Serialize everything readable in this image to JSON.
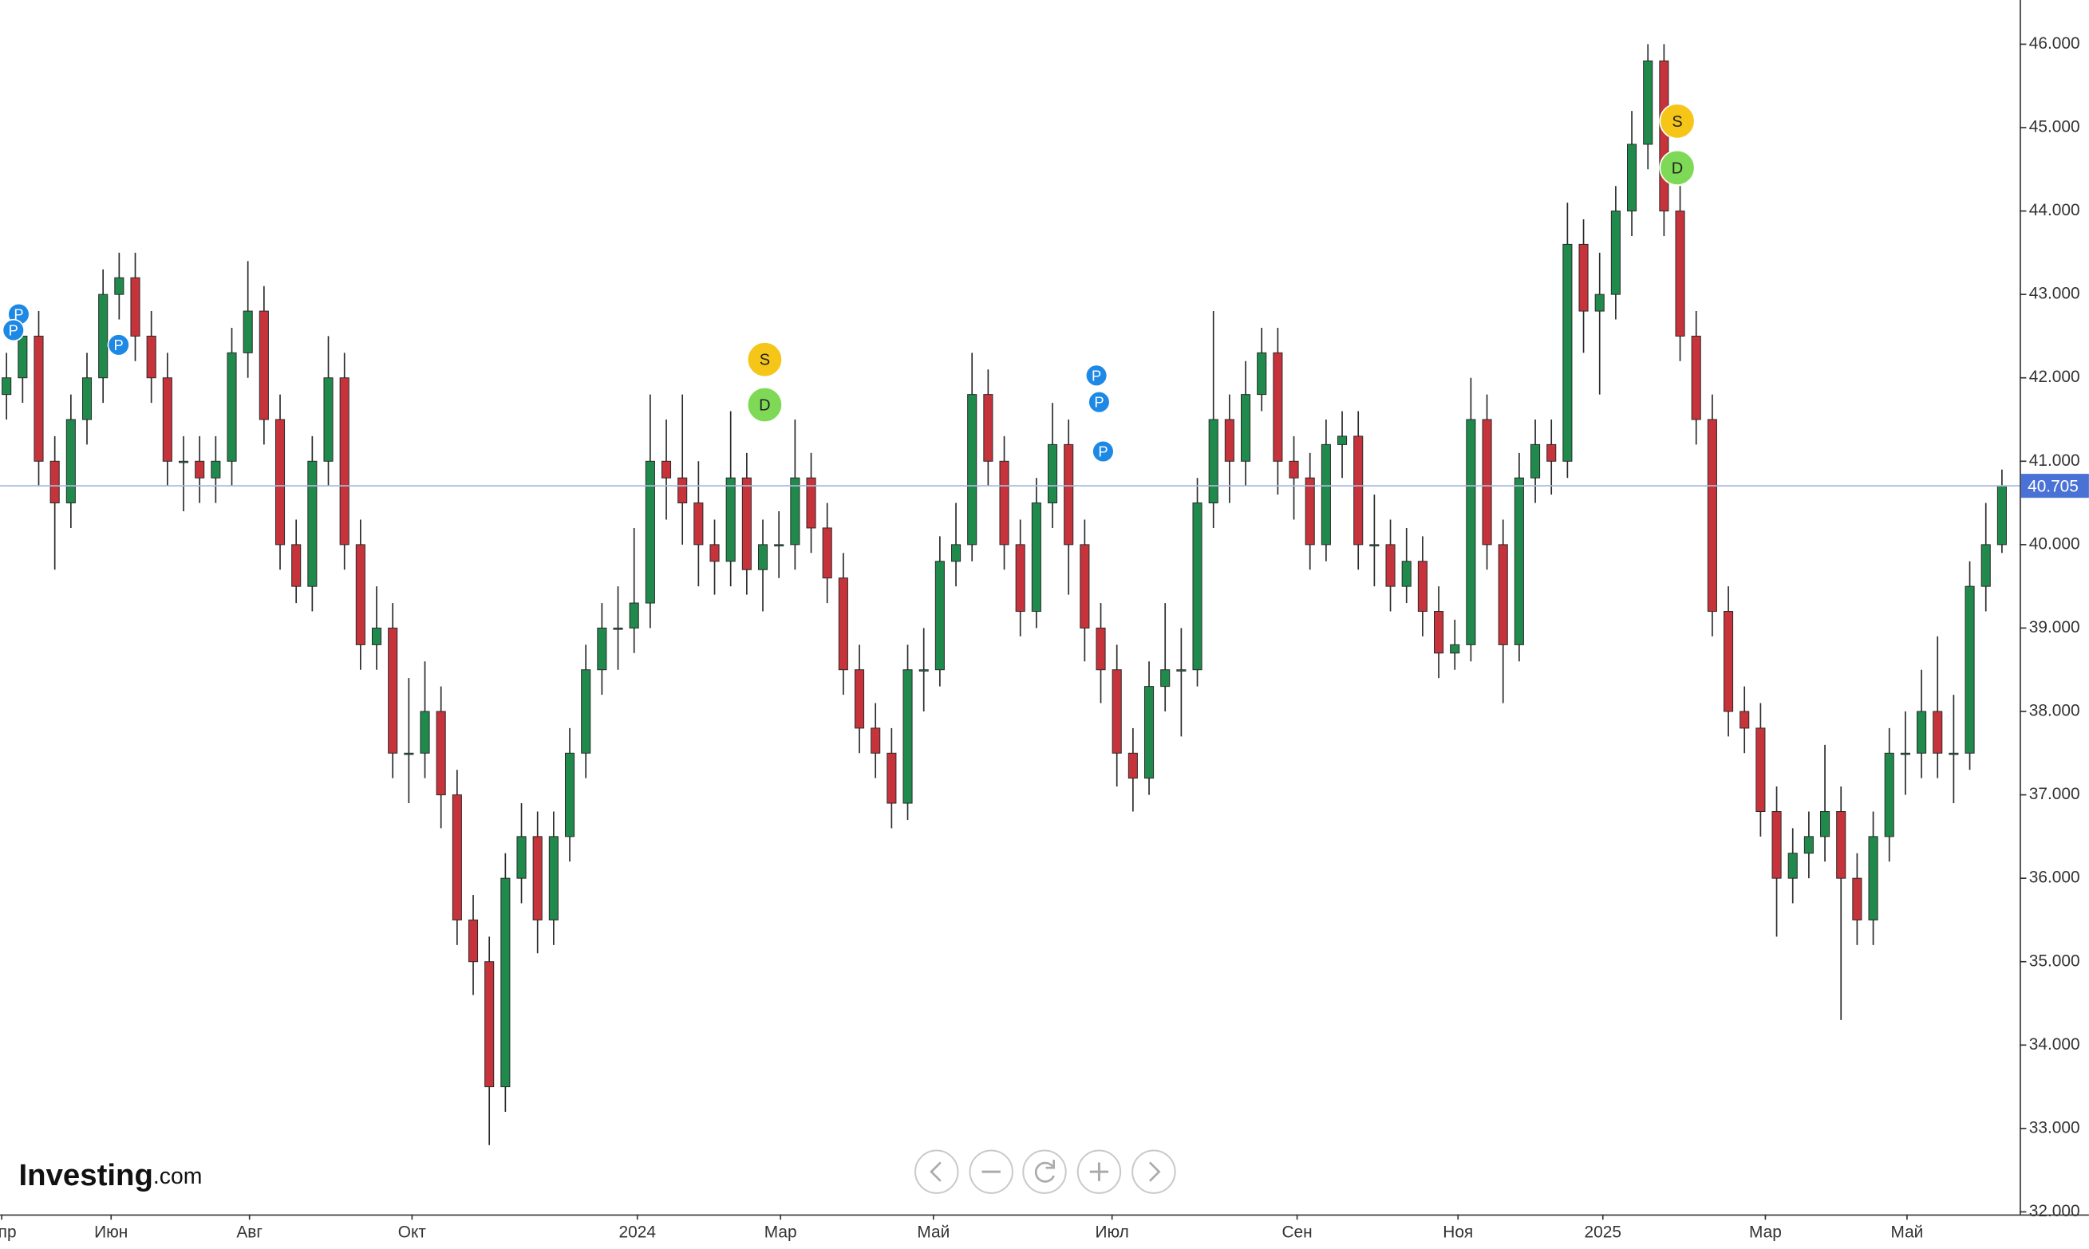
{
  "chart_data": {
    "type": "candlestick",
    "open": [
      41.8,
      42.0,
      42.5,
      41.0,
      40.5,
      41.5,
      42.0,
      43.0,
      43.2,
      42.5,
      42.0,
      41.0,
      41.0,
      40.8,
      41.0,
      42.3,
      42.8,
      41.5,
      40.0,
      39.5,
      41.0,
      42.0,
      40.0,
      38.8,
      39.0,
      37.5,
      37.5,
      38.0,
      37.0,
      35.5,
      35.0,
      33.5,
      36.0,
      36.5,
      35.5,
      36.5,
      37.5,
      38.5,
      39.0,
      39.0,
      39.3,
      41.0,
      40.8,
      40.5,
      40.0,
      39.8,
      40.8,
      39.7,
      40.0,
      40.0,
      40.8,
      40.2,
      39.6,
      38.5,
      37.8,
      37.5,
      36.9,
      38.5,
      38.5,
      39.8,
      40.0,
      41.8,
      41.0,
      40.0,
      39.2,
      40.5,
      41.2,
      40.0,
      39.0,
      38.5,
      37.5,
      37.2,
      38.3,
      38.5,
      38.5,
      40.5,
      41.5,
      41.0,
      41.8,
      42.3,
      41.0,
      40.8,
      40.0,
      41.2,
      41.3,
      40.0,
      40.0,
      39.5,
      39.8,
      39.2,
      38.7,
      38.8,
      41.5,
      40.0,
      38.8,
      40.8,
      41.2,
      41.0,
      43.6,
      42.8,
      43.0,
      44.0,
      44.8,
      45.8,
      44.0,
      42.5,
      41.5,
      39.2,
      38.0,
      37.8,
      36.8,
      36.0,
      36.3,
      36.5,
      36.8,
      36.0,
      35.5,
      36.5,
      37.5,
      37.5,
      38.0,
      37.5,
      37.5,
      39.5,
      40.0
    ],
    "high": [
      42.3,
      42.8,
      42.8,
      41.3,
      41.8,
      42.3,
      43.3,
      43.5,
      43.5,
      42.8,
      42.3,
      41.3,
      41.3,
      41.3,
      42.6,
      43.4,
      43.1,
      41.8,
      40.3,
      41.3,
      42.5,
      42.3,
      40.3,
      39.5,
      39.3,
      38.4,
      38.6,
      38.3,
      37.3,
      35.8,
      35.3,
      36.3,
      36.9,
      36.8,
      36.8,
      37.8,
      38.8,
      39.3,
      39.5,
      40.2,
      41.8,
      41.5,
      41.8,
      41.0,
      40.3,
      41.6,
      41.1,
      40.3,
      40.4,
      41.5,
      41.1,
      40.5,
      39.9,
      38.8,
      38.1,
      37.8,
      38.8,
      39.0,
      40.1,
      40.5,
      42.3,
      42.1,
      41.3,
      40.3,
      40.8,
      41.7,
      41.5,
      40.3,
      39.3,
      38.8,
      37.8,
      38.6,
      39.3,
      39.0,
      40.8,
      42.8,
      41.8,
      42.2,
      42.6,
      42.6,
      41.3,
      41.1,
      41.5,
      41.6,
      41.6,
      40.6,
      40.3,
      40.2,
      40.1,
      39.5,
      39.1,
      42.0,
      41.8,
      40.3,
      41.1,
      41.5,
      41.5,
      44.1,
      43.9,
      43.5,
      44.3,
      45.2,
      46.0,
      46.0,
      44.3,
      42.8,
      41.8,
      39.5,
      38.3,
      38.1,
      37.1,
      36.6,
      36.8,
      37.6,
      37.1,
      36.3,
      36.8,
      37.8,
      38.0,
      38.5,
      38.9,
      38.2,
      39.8,
      40.5,
      40.9
    ],
    "low": [
      41.5,
      41.7,
      40.7,
      39.7,
      40.2,
      41.2,
      41.7,
      42.7,
      42.2,
      41.7,
      40.7,
      40.4,
      40.5,
      40.5,
      40.7,
      42.0,
      41.2,
      39.7,
      39.3,
      39.2,
      40.7,
      39.7,
      38.5,
      38.5,
      37.2,
      36.9,
      37.2,
      36.6,
      35.2,
      34.6,
      32.8,
      33.2,
      35.7,
      35.1,
      35.2,
      36.2,
      37.2,
      38.2,
      38.5,
      38.7,
      39.0,
      40.3,
      40.0,
      39.5,
      39.4,
      39.5,
      39.4,
      39.2,
      39.6,
      39.7,
      39.9,
      39.3,
      38.2,
      37.5,
      37.2,
      36.6,
      36.7,
      38.0,
      38.3,
      39.5,
      39.8,
      40.7,
      39.7,
      38.9,
      39.0,
      40.2,
      39.4,
      38.6,
      38.1,
      37.1,
      36.8,
      37.0,
      38.0,
      37.7,
      38.3,
      40.2,
      40.5,
      40.7,
      41.6,
      40.6,
      40.3,
      39.7,
      39.8,
      40.8,
      39.7,
      39.5,
      39.2,
      39.3,
      38.9,
      38.4,
      38.5,
      38.6,
      39.7,
      38.1,
      38.6,
      40.5,
      40.6,
      40.8,
      42.3,
      41.8,
      42.7,
      43.7,
      44.5,
      43.7,
      42.2,
      41.2,
      38.9,
      37.7,
      37.5,
      36.5,
      35.3,
      35.7,
      36.0,
      36.2,
      34.3,
      35.2,
      35.2,
      36.2,
      37.0,
      37.2,
      37.2,
      36.9,
      37.3,
      39.2,
      39.9
    ],
    "close": [
      42.0,
      42.5,
      41.0,
      40.5,
      41.5,
      42.0,
      43.0,
      43.2,
      42.5,
      42.0,
      41.0,
      41.0,
      40.8,
      41.0,
      42.3,
      42.8,
      41.5,
      40.0,
      39.5,
      41.0,
      42.0,
      40.0,
      38.8,
      39.0,
      37.5,
      37.5,
      38.0,
      37.0,
      35.5,
      35.0,
      33.5,
      36.0,
      36.5,
      35.5,
      36.5,
      37.5,
      38.5,
      39.0,
      39.0,
      39.3,
      41.0,
      40.8,
      40.5,
      40.0,
      39.8,
      40.8,
      39.7,
      40.0,
      40.0,
      40.8,
      40.2,
      39.6,
      38.5,
      37.8,
      37.5,
      36.9,
      38.5,
      38.5,
      39.8,
      40.0,
      41.8,
      41.0,
      40.0,
      39.2,
      40.5,
      41.2,
      40.0,
      39.0,
      38.5,
      37.5,
      37.2,
      38.3,
      38.5,
      38.5,
      40.5,
      41.5,
      41.0,
      41.8,
      42.3,
      41.0,
      40.8,
      40.0,
      41.2,
      41.3,
      40.0,
      40.0,
      39.5,
      39.8,
      39.2,
      38.7,
      38.8,
      41.5,
      40.0,
      38.8,
      40.8,
      41.2,
      41.0,
      43.6,
      42.8,
      43.0,
      44.0,
      44.8,
      45.8,
      44.0,
      42.5,
      41.5,
      39.2,
      38.0,
      37.8,
      36.8,
      36.0,
      36.3,
      36.5,
      36.8,
      36.0,
      35.5,
      36.5,
      37.5,
      37.5,
      38.0,
      37.5,
      37.5,
      39.5,
      40.0,
      40.705
    ],
    "up_color": "#1f8a4c",
    "down_color": "#c7333a",
    "xlim": [
      -0.4,
      125.1
    ],
    "xticks": [
      {
        "value": -0.3,
        "label": "Апр"
      },
      {
        "value": 6.5,
        "label": "Июн"
      },
      {
        "value": 15.1,
        "label": "Авг"
      },
      {
        "value": 25.2,
        "label": "Окт"
      },
      {
        "value": 39.2,
        "label": "2024"
      },
      {
        "value": 48.1,
        "label": "Мар"
      },
      {
        "value": 57.6,
        "label": "Май"
      },
      {
        "value": 68.7,
        "label": "Июл"
      },
      {
        "value": 80.2,
        "label": "Сен"
      },
      {
        "value": 90.2,
        "label": "Ноя"
      },
      {
        "value": 99.2,
        "label": "2025"
      },
      {
        "value": 109.3,
        "label": "Мар"
      },
      {
        "value": 118.1,
        "label": "Май"
      }
    ],
    "ylim": [
      31.97,
      46.53
    ],
    "yticks": [
      {
        "value": 32,
        "label": "32.000"
      },
      {
        "value": 33,
        "label": "33.000"
      },
      {
        "value": 34,
        "label": "34.000"
      },
      {
        "value": 35,
        "label": "35.000"
      },
      {
        "value": 36,
        "label": "36.000"
      },
      {
        "value": 37,
        "label": "37.000"
      },
      {
        "value": 38,
        "label": "38.000"
      },
      {
        "value": 39,
        "label": "39.000"
      },
      {
        "value": 40,
        "label": "40.000"
      },
      {
        "value": 41,
        "label": "41.000"
      },
      {
        "value": 42,
        "label": "42.000"
      },
      {
        "value": 43,
        "label": "43.000"
      },
      {
        "value": 44,
        "label": "44.000"
      },
      {
        "value": 45,
        "label": "45.000"
      },
      {
        "value": 46,
        "label": "46.000"
      }
    ],
    "last_price": 40.705,
    "events": [
      {
        "label": "P"
      },
      {
        "label": "P"
      },
      {
        "label": "P"
      },
      {
        "label": "S"
      },
      {
        "label": "D"
      },
      {
        "label": "P"
      },
      {
        "label": "P"
      },
      {
        "label": "P"
      },
      {
        "label": "S"
      },
      {
        "label": "D"
      }
    ],
    "logo": {
      "name": "Investing",
      "suffix": ".com"
    }
  }
}
